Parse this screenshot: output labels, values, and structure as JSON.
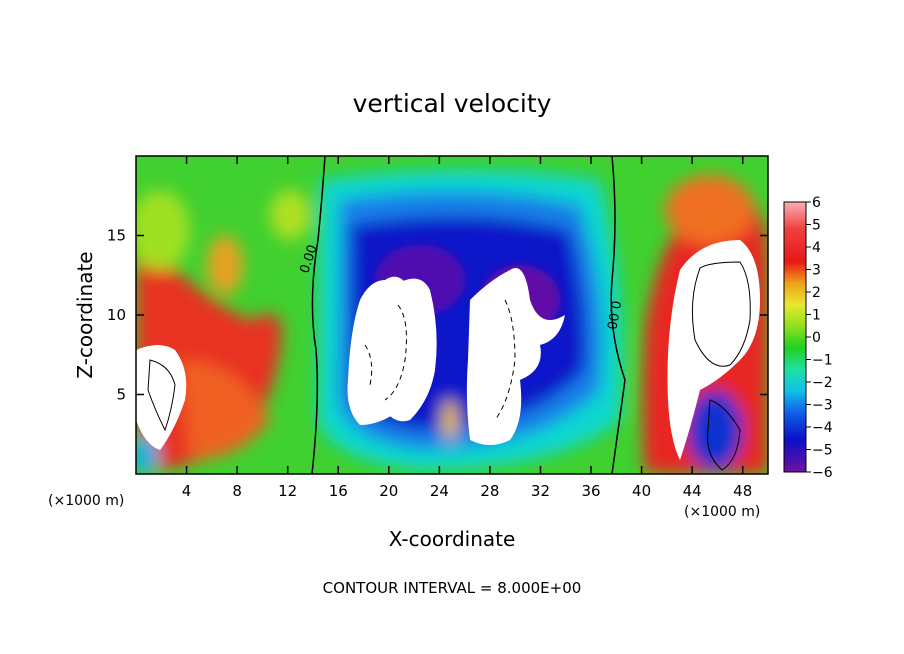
{
  "chart_data": {
    "type": "heatmap",
    "title": "vertical velocity",
    "xlabel": "X-coordinate",
    "ylabel": "Z-coordinate",
    "x_unit": "(×1000 m)",
    "y_unit": "(×1000 m)",
    "xlim": [
      0,
      50
    ],
    "ylim": [
      0,
      20
    ],
    "x_ticks": [
      4,
      8,
      12,
      16,
      20,
      24,
      28,
      32,
      36,
      40,
      44,
      48
    ],
    "y_ticks": [
      5,
      10,
      15
    ],
    "colorbar": {
      "ticks": [
        6,
        5,
        4,
        3,
        2,
        1,
        0,
        -1,
        -2,
        -3,
        -4,
        -5,
        -6
      ],
      "range": [
        -6,
        6
      ]
    },
    "contour_labels": [
      "0.00",
      "0.00"
    ],
    "footer": "CONTOUR INTERVAL = 8.000E+00"
  },
  "colors": {
    "min": "#7010a0",
    "blue": "#0a10c8",
    "cyan": "#10e0e8",
    "green": "#20d020",
    "yellow": "#e8e830",
    "orange": "#f08018",
    "red": "#e81818",
    "pink": "#f890a0"
  }
}
